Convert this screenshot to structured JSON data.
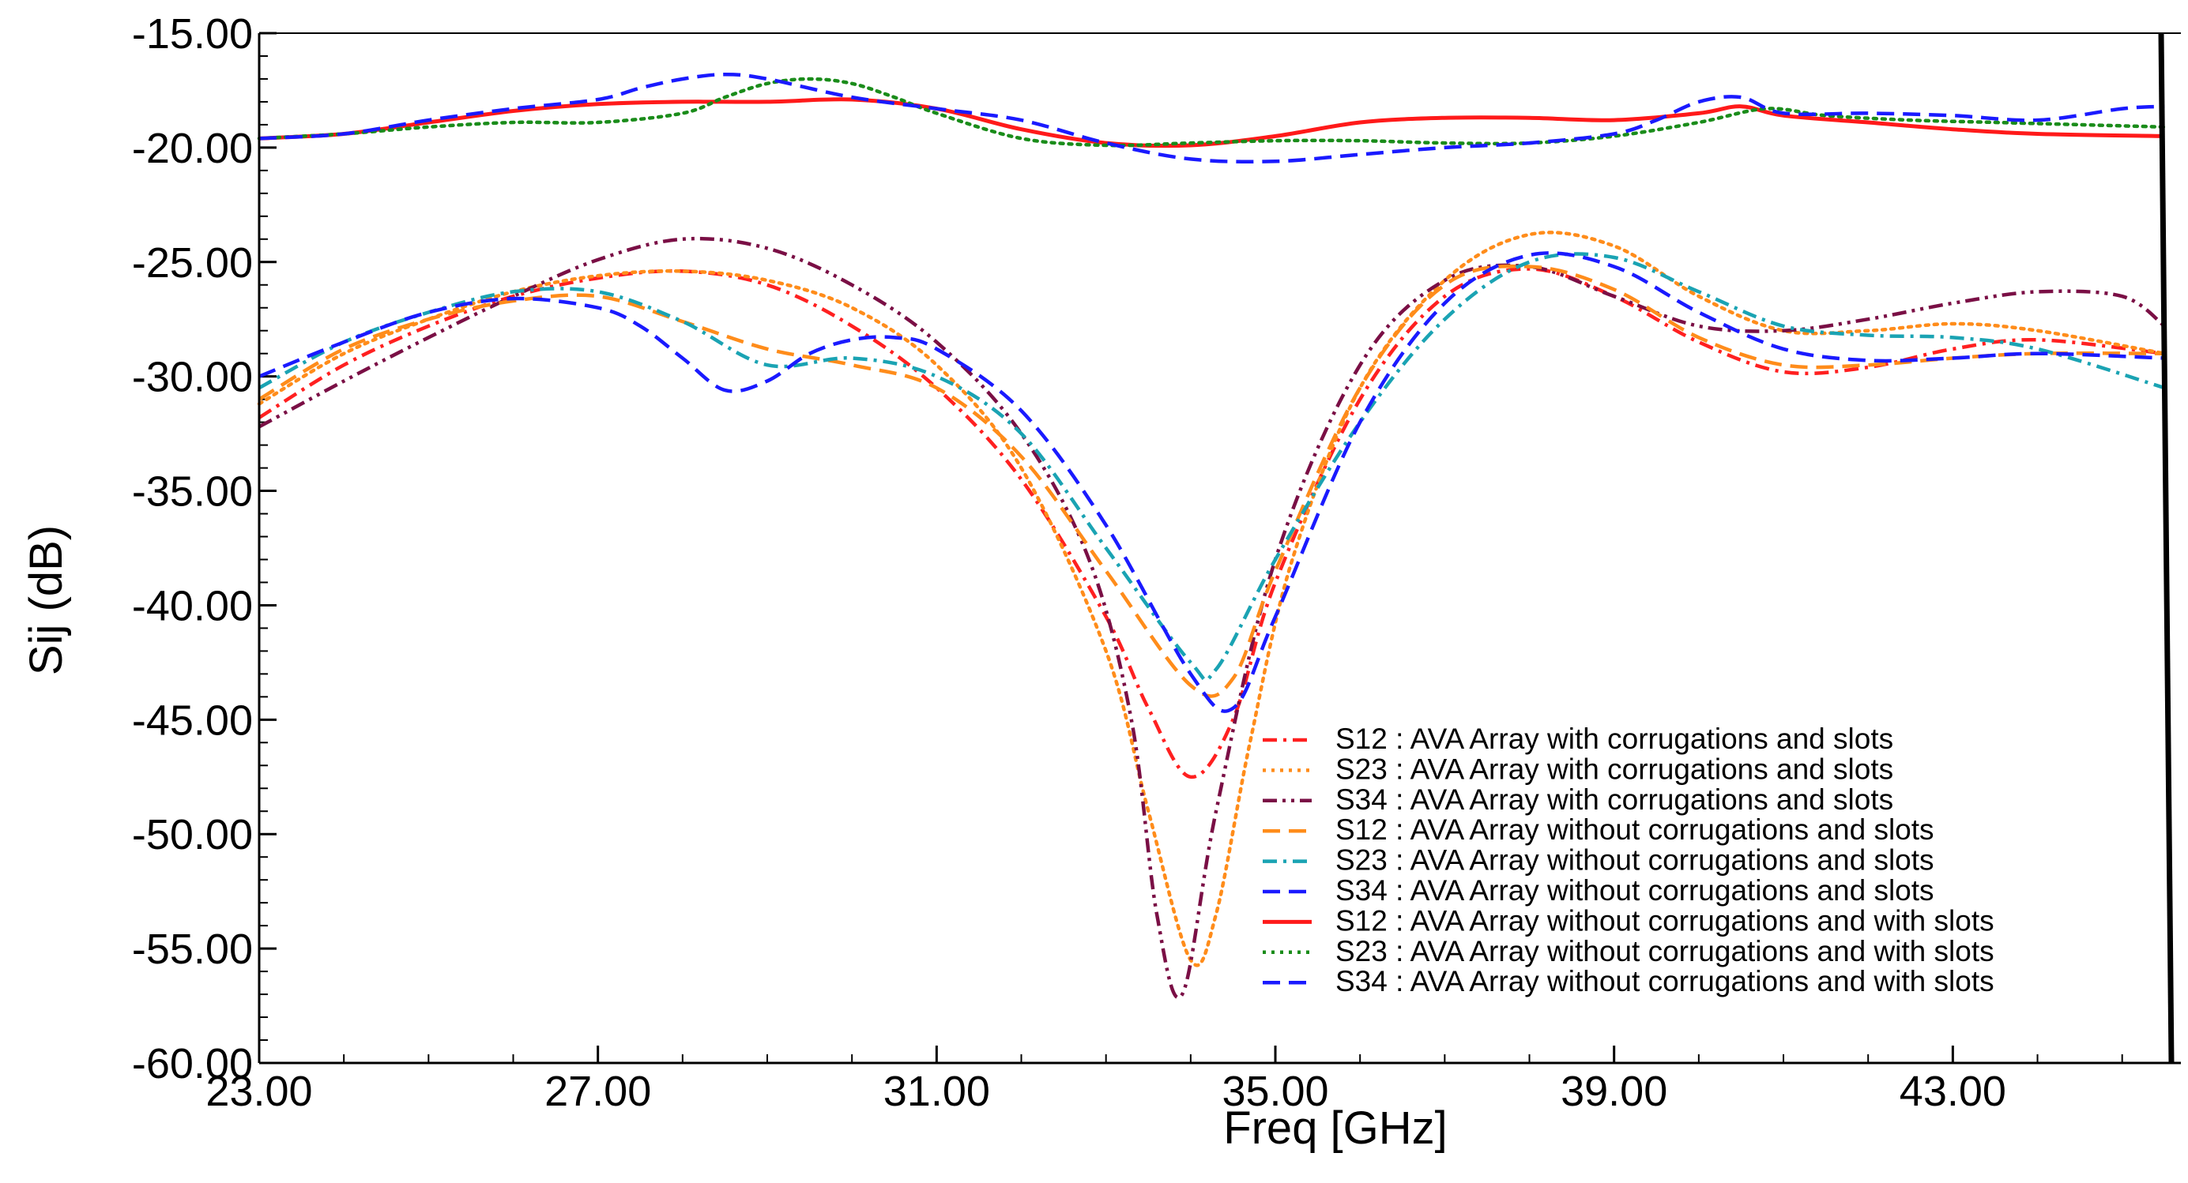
{
  "chart_data": {
    "type": "line",
    "title": "",
    "xlabel": "Freq [GHz]",
    "ylabel": "Sij (dB)",
    "xlim": [
      23.0,
      45.6
    ],
    "ylim": [
      -60.0,
      -15.0
    ],
    "xticks": [
      23.0,
      27.0,
      31.0,
      35.0,
      39.0,
      43.0
    ],
    "xtick_labels": [
      "23.00",
      "27.00",
      "31.00",
      "35.00",
      "39.00",
      "43.00"
    ],
    "yticks": [
      -15.0,
      -20.0,
      -25.0,
      -30.0,
      -35.0,
      -40.0,
      -45.0,
      -50.0,
      -55.0,
      -60.0
    ],
    "ytick_labels": [
      "-15.00",
      "-20.00",
      "-25.00",
      "-30.00",
      "-35.00",
      "-40.00",
      "-45.00",
      "-50.00",
      "-55.00",
      "-60.00"
    ],
    "grid": false,
    "legend_position": "bottom-right",
    "series": [
      {
        "name": "S12 : AVA Array with corrugations and slots",
        "color": "#ff2020",
        "dash": "dashdot",
        "x": [
          23.0,
          24.0,
          25.0,
          26.0,
          27.0,
          28.0,
          29.0,
          30.0,
          31.0,
          32.0,
          33.0,
          33.5,
          34.0,
          34.5,
          35.0,
          36.0,
          37.0,
          38.0,
          39.0,
          40.0,
          41.0,
          42.0,
          43.0,
          44.0,
          45.5
        ],
        "y": [
          -31.8,
          -29.5,
          -27.8,
          -26.5,
          -25.7,
          -25.4,
          -26.0,
          -27.8,
          -30.5,
          -34.5,
          -40.5,
          -44.5,
          -47.5,
          -45.0,
          -39.0,
          -31.0,
          -26.5,
          -25.3,
          -26.5,
          -28.5,
          -29.8,
          -29.6,
          -28.8,
          -28.4,
          -29.0
        ]
      },
      {
        "name": "S23 : AVA Array with corrugations and slots",
        "color": "#ff8c1a",
        "dash": "dot",
        "x": [
          23.0,
          24.0,
          25.0,
          26.0,
          27.0,
          28.0,
          29.0,
          30.0,
          31.0,
          32.0,
          33.0,
          33.5,
          34.0,
          34.3,
          34.7,
          35.2,
          36.0,
          37.0,
          38.0,
          39.0,
          40.0,
          41.0,
          42.0,
          43.0,
          44.0,
          45.5
        ],
        "y": [
          -31.2,
          -29.0,
          -27.5,
          -26.3,
          -25.6,
          -25.4,
          -25.8,
          -27.0,
          -29.5,
          -34.0,
          -42.0,
          -49.0,
          -55.5,
          -53.5,
          -46.0,
          -38.0,
          -30.5,
          -25.8,
          -23.8,
          -24.3,
          -26.5,
          -28.0,
          -28.0,
          -27.7,
          -28.0,
          -29.0
        ]
      },
      {
        "name": "S34 : AVA Array with corrugations and slots",
        "color": "#7a0f45",
        "dash": "dashdotdot",
        "x": [
          23.0,
          24.0,
          25.0,
          26.0,
          27.0,
          28.0,
          29.0,
          30.0,
          31.0,
          32.0,
          32.8,
          33.3,
          33.6,
          33.9,
          34.3,
          35.0,
          36.0,
          37.0,
          38.0,
          39.0,
          40.0,
          41.0,
          42.0,
          43.0,
          44.0,
          45.0,
          45.5
        ],
        "y": [
          -32.2,
          -30.2,
          -28.3,
          -26.5,
          -24.9,
          -24.0,
          -24.4,
          -26.0,
          -28.5,
          -32.5,
          -38.0,
          -45.0,
          -53.5,
          -57.0,
          -49.0,
          -38.0,
          -29.5,
          -25.8,
          -25.2,
          -26.5,
          -27.8,
          -28.0,
          -27.5,
          -26.8,
          -26.3,
          -26.5,
          -27.8
        ]
      },
      {
        "name": "S12 : AVA Array without corrugations and slots",
        "color": "#ff8c1a",
        "dash": "dash",
        "x": [
          23.0,
          24.0,
          25.0,
          26.0,
          27.0,
          28.0,
          29.0,
          30.0,
          31.0,
          32.0,
          33.0,
          34.0,
          34.5,
          35.0,
          36.0,
          37.0,
          38.0,
          39.0,
          40.0,
          41.0,
          42.0,
          43.0,
          44.0,
          45.5
        ],
        "y": [
          -31.0,
          -28.8,
          -27.5,
          -26.7,
          -26.5,
          -27.6,
          -28.8,
          -29.5,
          -30.5,
          -33.5,
          -38.5,
          -43.5,
          -43.2,
          -38.5,
          -30.5,
          -26.0,
          -25.2,
          -26.2,
          -28.3,
          -29.5,
          -29.5,
          -29.2,
          -29.0,
          -29.0
        ]
      },
      {
        "name": "S23 : AVA Array without corrugations and slots",
        "color": "#1aa3b3",
        "dash": "dashdot",
        "x": [
          23.0,
          24.0,
          25.0,
          26.0,
          27.0,
          28.0,
          29.0,
          30.0,
          31.0,
          32.0,
          33.0,
          34.0,
          34.3,
          35.0,
          36.0,
          37.0,
          38.0,
          39.0,
          40.0,
          41.0,
          42.0,
          43.0,
          44.0,
          45.5
        ],
        "y": [
          -30.5,
          -28.5,
          -27.2,
          -26.3,
          -26.3,
          -27.6,
          -29.5,
          -29.2,
          -30.0,
          -32.5,
          -37.5,
          -42.5,
          -42.8,
          -38.0,
          -32.0,
          -27.5,
          -25.0,
          -24.8,
          -26.3,
          -27.8,
          -28.2,
          -28.3,
          -28.8,
          -30.5
        ]
      },
      {
        "name": "S34 : AVA Array without corrugations and slots",
        "color": "#1a1aff",
        "dash": "dash",
        "x": [
          23.0,
          24.0,
          25.0,
          26.0,
          27.0,
          27.5,
          28.0,
          28.5,
          29.0,
          29.5,
          30.0,
          30.5,
          31.0,
          32.0,
          33.0,
          34.0,
          34.5,
          35.0,
          36.0,
          37.0,
          38.0,
          39.0,
          40.0,
          41.0,
          42.0,
          43.0,
          44.0,
          45.5
        ],
        "y": [
          -30.0,
          -28.5,
          -27.2,
          -26.6,
          -27.0,
          -27.8,
          -29.2,
          -30.6,
          -30.2,
          -29.0,
          -28.4,
          -28.3,
          -28.8,
          -31.5,
          -36.5,
          -43.0,
          -44.5,
          -40.5,
          -32.0,
          -26.8,
          -24.7,
          -25.2,
          -27.2,
          -28.8,
          -29.3,
          -29.2,
          -29.0,
          -29.2
        ]
      },
      {
        "name": "S12 : AVA Array without corrugations and with slots",
        "color": "#ff1a1a",
        "dash": "solid",
        "x": [
          23.0,
          24.0,
          25.0,
          26.0,
          27.0,
          28.0,
          29.0,
          30.0,
          31.0,
          32.0,
          33.0,
          34.0,
          35.0,
          36.0,
          37.0,
          38.0,
          39.0,
          40.0,
          40.5,
          41.0,
          42.0,
          43.0,
          44.0,
          45.5
        ],
        "y": [
          -19.6,
          -19.4,
          -18.9,
          -18.4,
          -18.1,
          -18.0,
          -18.0,
          -17.9,
          -18.3,
          -19.2,
          -19.8,
          -19.9,
          -19.5,
          -18.9,
          -18.7,
          -18.7,
          -18.8,
          -18.5,
          -18.2,
          -18.6,
          -18.9,
          -19.2,
          -19.4,
          -19.5
        ]
      },
      {
        "name": "S23 : AVA Array without corrugations and with slots",
        "color": "#1a8c1a",
        "dash": "dot",
        "x": [
          23.0,
          24.0,
          25.0,
          26.0,
          27.0,
          28.0,
          28.5,
          29.0,
          29.5,
          30.0,
          30.5,
          31.0,
          32.0,
          33.0,
          34.0,
          35.0,
          36.0,
          37.0,
          38.0,
          39.0,
          40.0,
          40.8,
          41.5,
          42.5,
          43.5,
          44.5,
          45.5
        ],
        "y": [
          -19.6,
          -19.4,
          -19.1,
          -18.9,
          -18.9,
          -18.5,
          -17.8,
          -17.2,
          -17.0,
          -17.2,
          -17.8,
          -18.5,
          -19.6,
          -19.9,
          -19.8,
          -19.7,
          -19.7,
          -19.8,
          -19.8,
          -19.5,
          -18.9,
          -18.3,
          -18.6,
          -18.8,
          -18.9,
          -19.0,
          -19.1
        ]
      },
      {
        "name": "S34 : AVA Array without corrugations and with slots",
        "color": "#1a1aff",
        "dash": "dash",
        "x": [
          23.0,
          24.0,
          25.0,
          26.0,
          27.0,
          27.5,
          28.0,
          28.5,
          29.0,
          30.0,
          31.0,
          32.0,
          33.0,
          34.0,
          35.0,
          36.0,
          37.0,
          38.0,
          39.0,
          39.5,
          40.0,
          40.5,
          41.0,
          42.0,
          43.0,
          44.0,
          45.0,
          45.5
        ],
        "y": [
          -19.6,
          -19.4,
          -18.8,
          -18.3,
          -17.9,
          -17.4,
          -17.0,
          -16.8,
          -17.0,
          -17.8,
          -18.3,
          -18.8,
          -19.8,
          -20.5,
          -20.6,
          -20.3,
          -20.0,
          -19.8,
          -19.4,
          -18.8,
          -18.0,
          -17.8,
          -18.5,
          -18.5,
          -18.6,
          -18.8,
          -18.3,
          -18.2
        ]
      }
    ]
  }
}
